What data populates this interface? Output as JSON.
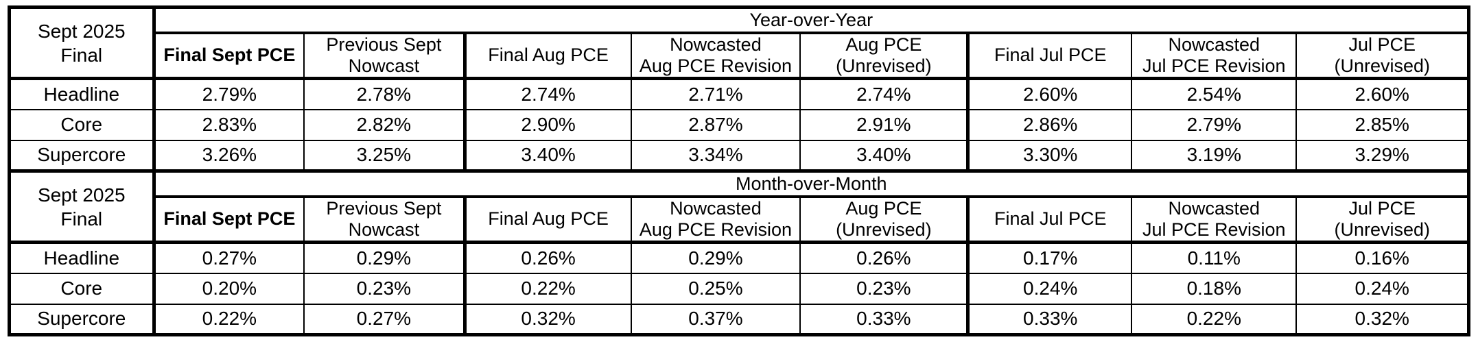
{
  "colors": {
    "border": "#000000",
    "background": "#ffffff",
    "text": "#000000"
  },
  "chart_data": {
    "type": "table",
    "corner_label_lines": [
      "Sept 2025",
      "Final"
    ],
    "columns": [
      {
        "lines": [
          "Final Sept PCE"
        ],
        "bold": true
      },
      {
        "lines": [
          "Previous Sept",
          "Nowcast"
        ]
      },
      {
        "lines": [
          "Final Aug PCE"
        ]
      },
      {
        "lines": [
          "Nowcasted",
          "Aug PCE Revision"
        ]
      },
      {
        "lines": [
          "Aug PCE",
          "(Unrevised)"
        ]
      },
      {
        "lines": [
          "Final Jul PCE"
        ]
      },
      {
        "lines": [
          "Nowcasted",
          "Jul PCE Revision"
        ]
      },
      {
        "lines": [
          "Jul PCE",
          "(Unrevised)"
        ]
      }
    ],
    "sections": [
      {
        "title": "Year-over-Year",
        "rows": [
          {
            "label": "Headline",
            "values": [
              "2.79%",
              "2.78%",
              "2.74%",
              "2.71%",
              "2.74%",
              "2.60%",
              "2.54%",
              "2.60%"
            ]
          },
          {
            "label": "Core",
            "values": [
              "2.83%",
              "2.82%",
              "2.90%",
              "2.87%",
              "2.91%",
              "2.86%",
              "2.79%",
              "2.85%"
            ]
          },
          {
            "label": "Supercore",
            "values": [
              "3.26%",
              "3.25%",
              "3.40%",
              "3.34%",
              "3.40%",
              "3.30%",
              "3.19%",
              "3.29%"
            ]
          }
        ]
      },
      {
        "title": "Month-over-Month",
        "rows": [
          {
            "label": "Headline",
            "values": [
              "0.27%",
              "0.29%",
              "0.26%",
              "0.29%",
              "0.26%",
              "0.17%",
              "0.11%",
              "0.16%"
            ]
          },
          {
            "label": "Core",
            "values": [
              "0.20%",
              "0.23%",
              "0.22%",
              "0.25%",
              "0.23%",
              "0.24%",
              "0.18%",
              "0.24%"
            ]
          },
          {
            "label": "Supercore",
            "values": [
              "0.22%",
              "0.27%",
              "0.32%",
              "0.37%",
              "0.33%",
              "0.33%",
              "0.22%",
              "0.32%"
            ]
          }
        ]
      }
    ]
  }
}
